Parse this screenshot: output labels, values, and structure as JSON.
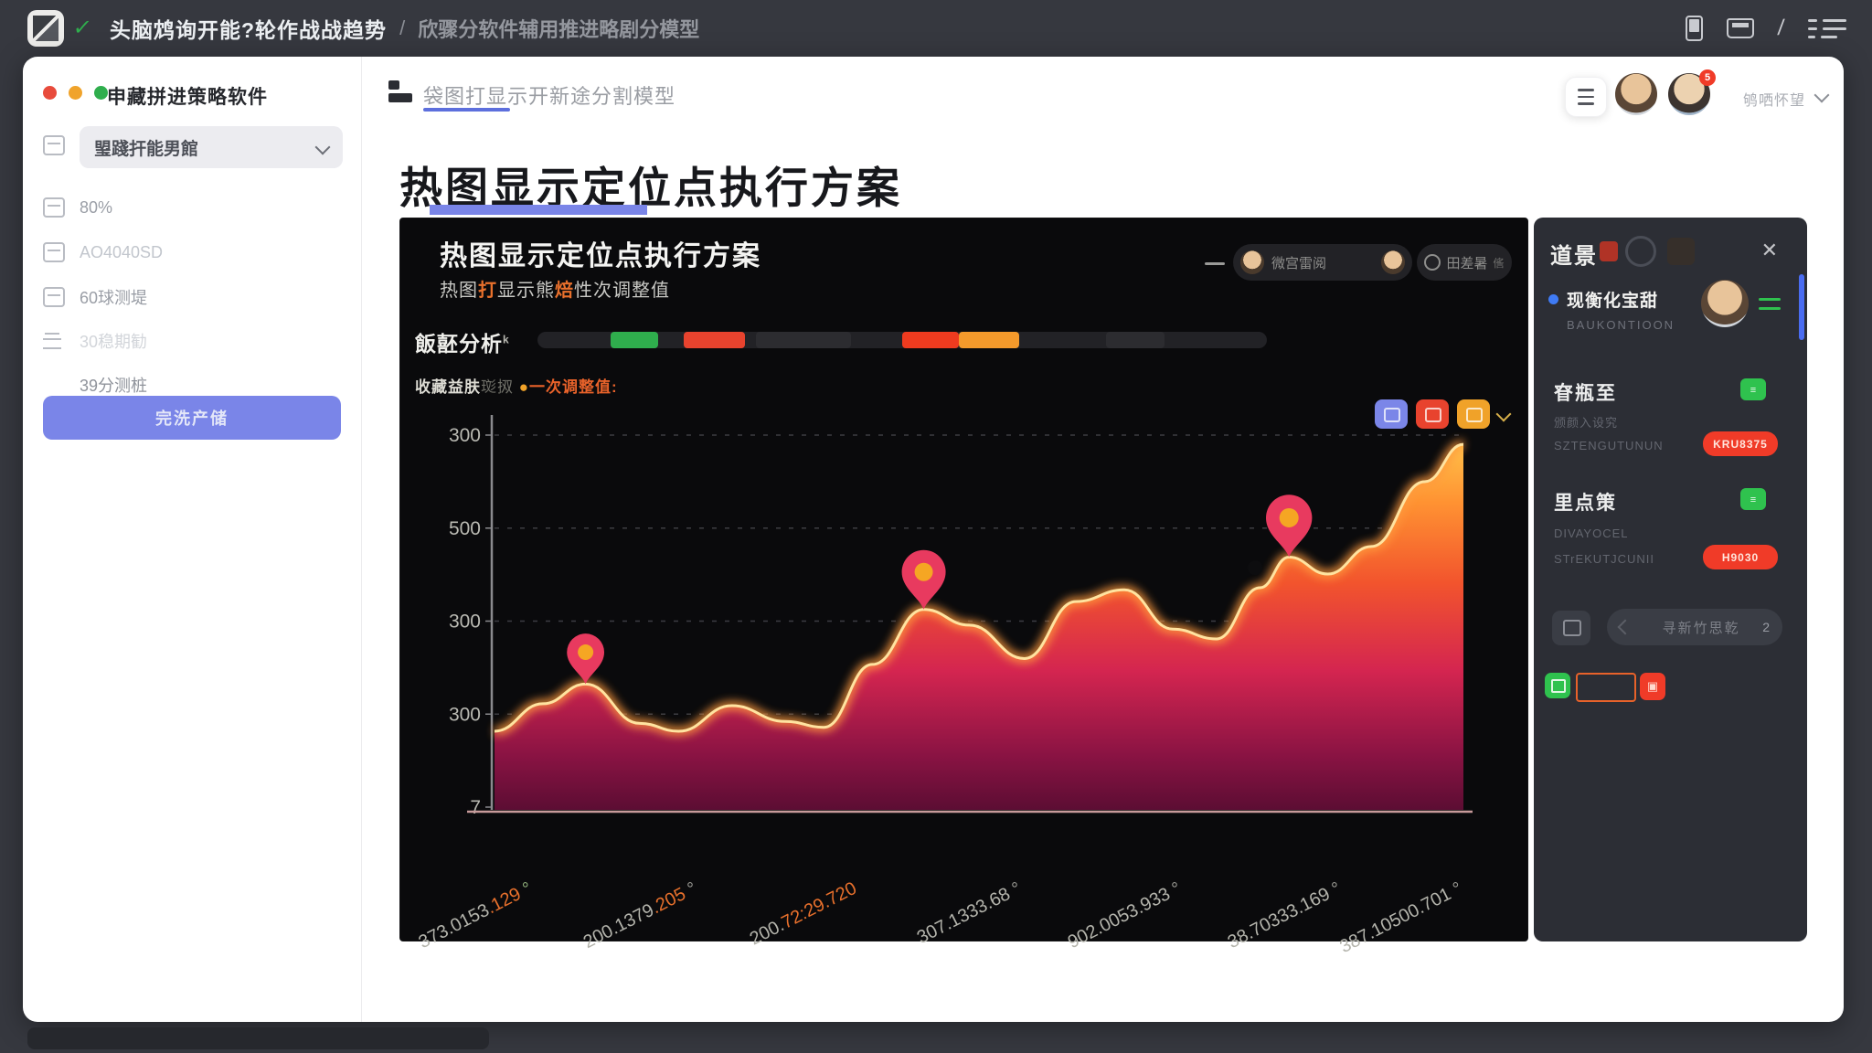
{
  "topbar": {
    "title": "头脑鸩询开能?轮作战战趋势",
    "sep": "/",
    "subtitle": "欣骤分软件辅用推进略剧分模型"
  },
  "sidebar": {
    "app_title": "申藏拼进策略软件",
    "dropdown": "琞踐扞能男館",
    "items": [
      {
        "label": "80%"
      },
      {
        "label": "AO4040SD"
      },
      {
        "label": "60球测堤"
      },
      {
        "label": "30稳期勧"
      },
      {
        "label": "39分测桩"
      }
    ],
    "action": "完洗产储"
  },
  "header": {
    "breadcrumb": "袋图打显示开新途分割模型",
    "user": "鸲哂怀望",
    "badge": "5"
  },
  "page_title": "热图显示定位点执行方案",
  "panel": {
    "title": "热图显示定位点执行方案",
    "sub1": "热图",
    "sub2": "打",
    "sub3": "显示熊",
    "sub4": "焙",
    "sub5": "性次调整值",
    "toolbar": {
      "pill1": "微宫雷阅",
      "pill2": "田差暑",
      "pill2b": "㑾"
    },
    "analysis_label": "飯噽分析",
    "analysis_sup": "k",
    "analysis_bar": {
      "track": "#222226",
      "segments": [
        {
          "from": 0.1,
          "to": 0.165,
          "color": "#2fae4d"
        },
        {
          "from": 0.2,
          "to": 0.285,
          "color": "#e8432e"
        },
        {
          "from": 0.3,
          "to": 0.43,
          "color": "#2c2c30"
        },
        {
          "from": 0.5,
          "to": 0.578,
          "color": "#ee3b1f"
        },
        {
          "from": 0.578,
          "to": 0.66,
          "color": "#f59a2b"
        },
        {
          "from": 0.78,
          "to": 0.86,
          "color": "#2c2c30"
        }
      ]
    },
    "collect": {
      "c1": "收藏益肤",
      "c2": "珳㧐",
      "dot": "●",
      "c3": "一次调整值:"
    }
  },
  "chart_data": {
    "type": "area",
    "title": "热图显示定位点执行方案",
    "ylabel": "",
    "xlabel": "",
    "grid": "dashed-horizontal",
    "y_ticks": [
      "300",
      "500",
      "300",
      "300",
      "7"
    ],
    "x_positions": [
      0.04,
      0.21,
      0.375,
      0.545,
      0.71,
      0.875,
      1.0
    ],
    "x_labels": [
      [
        {
          "t": "373.0153",
          "c": "#b4b4ac"
        },
        {
          "t": ".129",
          "c": "#e8702c"
        },
        {
          "t": " °",
          "c": "#8fae7a"
        }
      ],
      [
        {
          "t": "200.1379",
          "c": "#b4b4ac"
        },
        {
          "t": ".205",
          "c": "#e8702c"
        },
        {
          "t": " °",
          "c": "#9a9a94"
        }
      ],
      [
        {
          "t": "200.",
          "c": "#b4b4ac"
        },
        {
          "t": "72:29.720",
          "c": "#e8702c"
        }
      ],
      [
        {
          "t": "307.1333.68",
          "c": "#b4b4ac"
        },
        {
          "t": " °",
          "c": "#9a9a94"
        }
      ],
      [
        {
          "t": "902.0053.933",
          "c": "#b4b4ac"
        },
        {
          "t": " °",
          "c": "#9a9a94"
        }
      ],
      [
        {
          "t": "38.70333.169",
          "c": "#b4b4ac"
        },
        {
          "t": " °",
          "c": "#9a9a94"
        }
      ],
      [
        {
          "t": "387.10500.701",
          "c": "#b4b4ac"
        },
        {
          "t": " °",
          "c": "#9a9a94"
        }
      ]
    ],
    "series": [
      {
        "name": "一次调整值",
        "points": [
          [
            0,
            0.8
          ],
          [
            0.05,
            0.73
          ],
          [
            0.094,
            0.68
          ],
          [
            0.15,
            0.78
          ],
          [
            0.19,
            0.8
          ],
          [
            0.245,
            0.735
          ],
          [
            0.3,
            0.775
          ],
          [
            0.34,
            0.79
          ],
          [
            0.39,
            0.63
          ],
          [
            0.443,
            0.49
          ],
          [
            0.49,
            0.53
          ],
          [
            0.547,
            0.615
          ],
          [
            0.6,
            0.47
          ],
          [
            0.65,
            0.44
          ],
          [
            0.7,
            0.54
          ],
          [
            0.745,
            0.565
          ],
          [
            0.79,
            0.435
          ],
          [
            0.82,
            0.357
          ],
          [
            0.86,
            0.4
          ],
          [
            0.905,
            0.33
          ],
          [
            0.96,
            0.165
          ],
          [
            1.0,
            0.07
          ]
        ]
      }
    ],
    "markers": [
      {
        "x": 0.094,
        "y": 0.68,
        "s": 0.85
      },
      {
        "x": 0.443,
        "y": 0.49,
        "s": 1.0
      },
      {
        "x": 0.82,
        "y": 0.357,
        "s": 1.05
      }
    ],
    "dot": {
      "x": 0.785,
      "y": 0.384
    },
    "legend_buttons": [
      {
        "color": "#7b86e8"
      },
      {
        "color": "#e8432e"
      },
      {
        "color": "#f0a229"
      }
    ],
    "colors": {
      "grid": "#3d3d42",
      "axis": "#8a8a8e",
      "baseline": "#c79a9a",
      "line": "#ffe3a0",
      "line_glow": "#ff9a3e",
      "pin": "#e83a5f",
      "pin_center": "#f5a623",
      "dot": "#0d0d0f",
      "area_stops": [
        [
          "0",
          "#ffc04a"
        ],
        [
          "0.16",
          "#ff9232"
        ],
        [
          "0.38",
          "#f2542d"
        ],
        [
          "0.62",
          "#d42550"
        ],
        [
          "0.85",
          "#8a1343"
        ],
        [
          "1",
          "#5c0d33"
        ]
      ]
    }
  },
  "right_panel": {
    "title": "道景",
    "profile": {
      "name": "现衡化宝甜",
      "sub": "BAUKONTIOON"
    },
    "sections": [
      {
        "title": "眘瓶至",
        "line1": "颁颜入设究",
        "line2": "SZTENGUTUNUN",
        "button": "KRU8375"
      },
      {
        "title": "里点策",
        "line1": "DIVAYOCEL",
        "line2": "STrEKUTJCUNII",
        "button": "H9030"
      }
    ],
    "search": {
      "placeholder": "寻新竹思乾",
      "count": "2"
    }
  }
}
